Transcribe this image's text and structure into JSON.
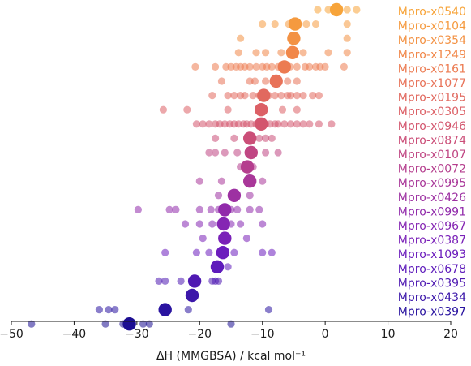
{
  "chart_data": {
    "type": "scatter",
    "title": "",
    "xlabel": "ΔH (MMGBSA) / kcal mol⁻¹",
    "ylabel": "",
    "xlim": [
      -50,
      20
    ],
    "xticks": [
      -50,
      -40,
      -30,
      -20,
      -10,
      0,
      10,
      20
    ],
    "xtick_labels": [
      "−50",
      "−40",
      "−30",
      "−20",
      "−10",
      "0",
      "10",
      "20"
    ],
    "grid": false,
    "legend": "none",
    "series": [
      {
        "name": "Mpro-x0540",
        "color": "#f7a43a",
        "mean": 1.8,
        "points": [
          -1.2,
          0.5,
          1.8,
          3.5,
          5.0
        ]
      },
      {
        "name": "Mpro-x0104",
        "color": "#f59a3f",
        "mean": -4.8,
        "points": [
          -10,
          -8,
          -5.8,
          -4.8,
          -3.0,
          -1.5,
          3.5
        ]
      },
      {
        "name": "Mpro-x0354",
        "color": "#f39244",
        "mean": -5.0,
        "points": [
          -13.5,
          -5.0,
          3.5
        ]
      },
      {
        "name": "Mpro-x1249",
        "color": "#f18749",
        "mean": -5.2,
        "points": [
          -13.8,
          -11,
          -9.5,
          -7,
          -5.2,
          -3.5,
          0.5,
          3.5
        ]
      },
      {
        "name": "Mpro-x0161",
        "color": "#ec7b51",
        "mean": -6.5,
        "points": [
          -20.7,
          -17.5,
          -15.8,
          -15,
          -14.2,
          -13.5,
          -12.8,
          -12,
          -11,
          -10,
          -9.3,
          -8.5,
          -7.5,
          -6.5,
          -5.6,
          -4.5,
          -3.2,
          -2.5,
          -1.5,
          -0.8,
          0,
          3
        ]
      },
      {
        "name": "Mpro-x1077",
        "color": "#e87258",
        "mean": -7.8,
        "points": [
          -16.5,
          -12,
          -11.2,
          -9.5,
          -7.8,
          -6,
          -4.5
        ]
      },
      {
        "name": "Mpro-x0195",
        "color": "#e1695f",
        "mean": -9.8,
        "points": [
          -18,
          -15.5,
          -14.5,
          -13.5,
          -12.8,
          -11.5,
          -10.5,
          -9.8,
          -9,
          -8,
          -7,
          -6,
          -5.5,
          -4.5,
          -3.5,
          -2,
          -1
        ]
      },
      {
        "name": "Mpro-x0305",
        "color": "#dc6066",
        "mean": -10.2,
        "points": [
          -25.8,
          -22,
          -15.5,
          -10.2,
          -6.8,
          -4.5
        ]
      },
      {
        "name": "Mpro-x0946",
        "color": "#d3566e",
        "mean": -10.2,
        "points": [
          -20.5,
          -19.5,
          -18.5,
          -17.5,
          -16.8,
          -16,
          -15.2,
          -14.5,
          -13.8,
          -13,
          -12.5,
          -11.8,
          -11,
          -10.2,
          -9.5,
          -8.8,
          -8,
          -7.5,
          -6.5,
          -5.5,
          -4.5,
          -3.5,
          -2.5,
          -1,
          1
        ]
      },
      {
        "name": "Mpro-x0874",
        "color": "#cb4e78",
        "mean": -12.0,
        "points": [
          -17.5,
          -14.5,
          -12.0,
          -10.5,
          -9.5,
          -8.5
        ]
      },
      {
        "name": "Mpro-x0107",
        "color": "#c04683",
        "mean": -11.8,
        "points": [
          -18.5,
          -17.5,
          -16,
          -14,
          -11.8,
          -9.5,
          -7.5
        ]
      },
      {
        "name": "Mpro-x0072",
        "color": "#b53e8e",
        "mean": -12.4,
        "points": [
          -13.5,
          -12.4,
          -11.5
        ]
      },
      {
        "name": "Mpro-x0995",
        "color": "#a93799",
        "mean": -12.0,
        "points": [
          -20,
          -16.5,
          -12.0,
          -10
        ]
      },
      {
        "name": "Mpro-x0426",
        "color": "#9d31a2",
        "mean": -14.5,
        "points": [
          -17,
          -14.5,
          -12
        ]
      },
      {
        "name": "Mpro-x0991",
        "color": "#912bab",
        "mean": -16.0,
        "points": [
          -29.8,
          -24.8,
          -23.8,
          -20,
          -18.2,
          -17,
          -16.0,
          -15,
          -14,
          -12,
          -10.5
        ]
      },
      {
        "name": "Mpro-x0967",
        "color": "#8526b3",
        "mean": -16.2,
        "points": [
          -22.3,
          -20,
          -18,
          -16.2,
          -15,
          -13.5,
          -10
        ]
      },
      {
        "name": "Mpro-x0387",
        "color": "#7a21b8",
        "mean": -16.0,
        "points": [
          -19.5,
          -16.0,
          -12.5
        ]
      },
      {
        "name": "Mpro-x1093",
        "color": "#6c1dbd",
        "mean": -16.3,
        "points": [
          -25.5,
          -20.5,
          -18.5,
          -16.3,
          -14.5,
          -10,
          -8.5
        ]
      },
      {
        "name": "Mpro-x0678",
        "color": "#5e1bbb",
        "mean": -17.2,
        "points": [
          -17.2,
          -15.5
        ]
      },
      {
        "name": "Mpro-x0395",
        "color": "#4f19b2",
        "mean": -20.8,
        "points": [
          -26.5,
          -25.5,
          -23,
          -20.8,
          -18,
          -17.5,
          -17
        ]
      },
      {
        "name": "Mpro-x0434",
        "color": "#3c17aa",
        "mean": -21.2,
        "points": [
          -21.2
        ]
      },
      {
        "name": "Mpro-x0397",
        "color": "#2a14a0",
        "mean": -25.5,
        "points": [
          -36,
          -34.5,
          -33.5,
          -25.5,
          -21.8,
          -9
        ]
      },
      {
        "name": "",
        "color": "#1c0e92",
        "mean": -31.2,
        "points": [
          -46.8,
          -35,
          -32.2,
          -29,
          -28,
          -15
        ]
      }
    ]
  }
}
